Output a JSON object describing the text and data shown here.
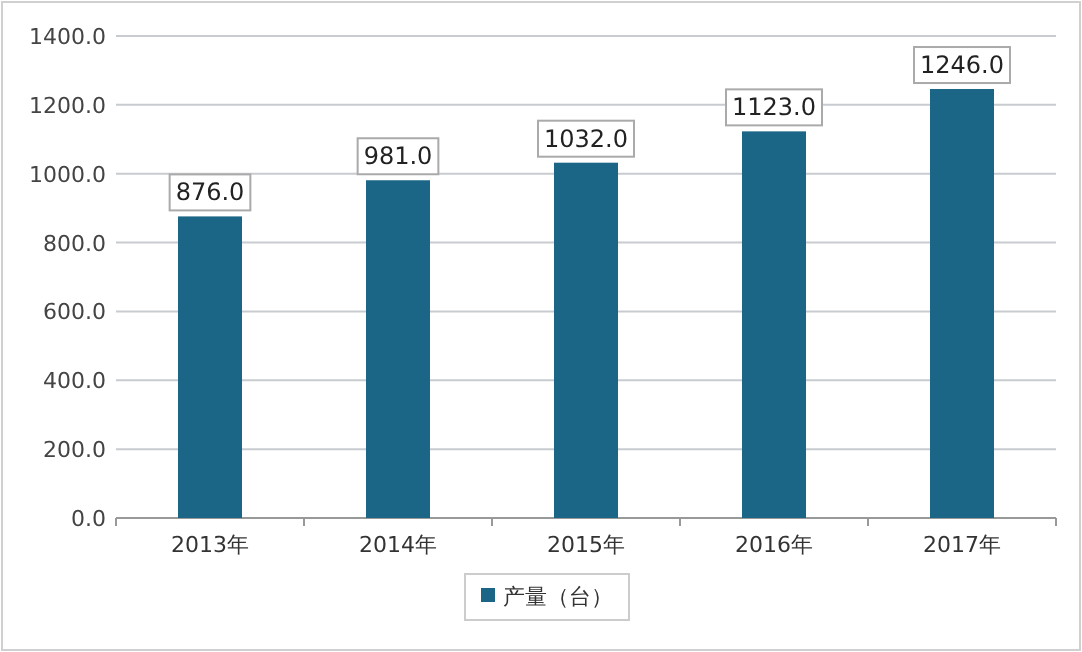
{
  "chart_data": {
    "type": "bar",
    "categories": [
      "2013年",
      "2014年",
      "2015年",
      "2016年",
      "2017年"
    ],
    "series": [
      {
        "name": "产量（台）",
        "color": "#1b6686",
        "values": [
          876,
          981,
          1032,
          1123,
          1246
        ],
        "value_labels": [
          "876.0",
          "981.0",
          "1032.0",
          "1123.0",
          "1246.0"
        ]
      }
    ],
    "ylim": [
      0,
      1400
    ],
    "yticks": [
      {
        "value": 0,
        "label": "0.0"
      },
      {
        "value": 200,
        "label": "200.0"
      },
      {
        "value": 400,
        "label": "400.0"
      },
      {
        "value": 600,
        "label": "600.0"
      },
      {
        "value": 800,
        "label": "800.0"
      },
      {
        "value": 1000,
        "label": "1000.0"
      },
      {
        "value": 1200,
        "label": "1200.0"
      },
      {
        "value": 1400,
        "label": "1400.0"
      }
    ],
    "grid": "y",
    "legend": "bottom"
  }
}
